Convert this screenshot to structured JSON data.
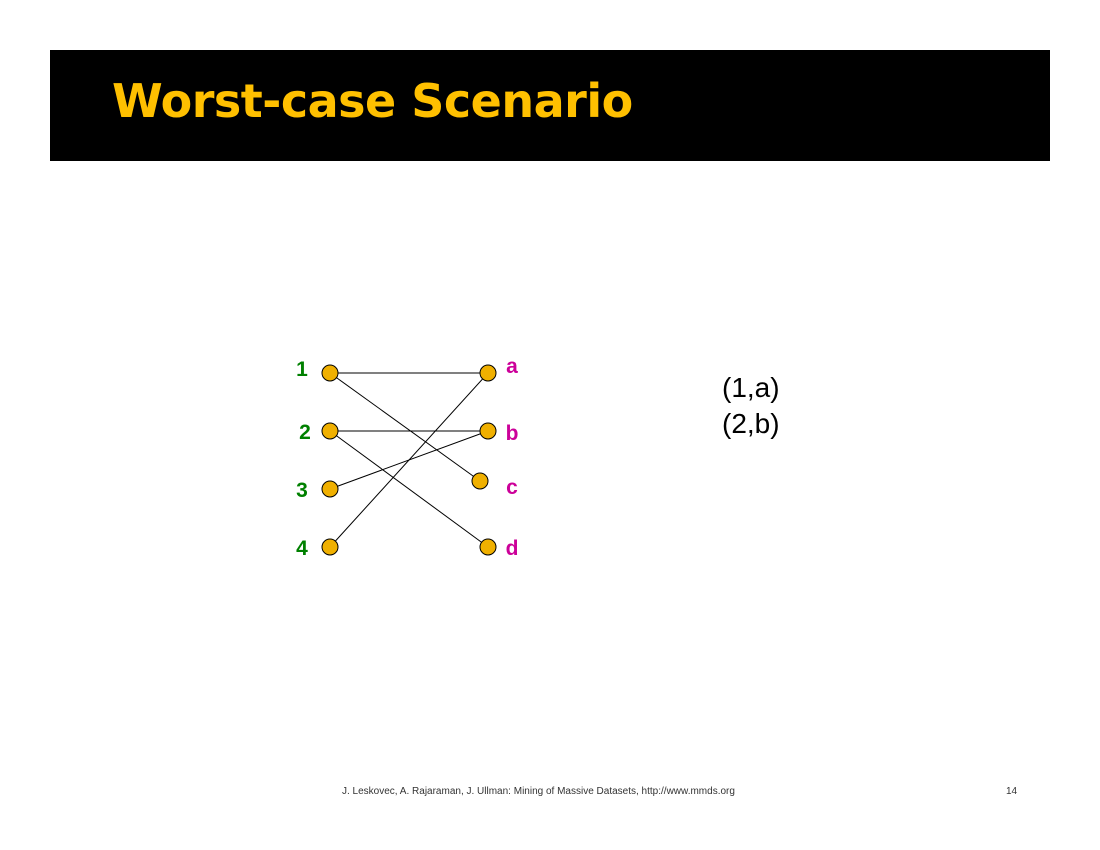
{
  "slide": {
    "title": "Worst-case Scenario",
    "footer": "J. Leskovec, A. Rajaraman, J. Ullman: Mining of Massive Datasets, http://www.mmds.org",
    "page_number": "14"
  },
  "colors": {
    "title_bar": "#000000",
    "title_text": "#ffc000",
    "left_label": "#008000",
    "right_label": "#cc0099",
    "node_fill": "#f0b000"
  },
  "graph": {
    "left_nodes": [
      "1",
      "2",
      "3",
      "4"
    ],
    "right_nodes": [
      "a",
      "b",
      "c",
      "d"
    ],
    "edges": [
      [
        "1",
        "a"
      ],
      [
        "1",
        "c"
      ],
      [
        "2",
        "b"
      ],
      [
        "2",
        "d"
      ],
      [
        "3",
        "b"
      ],
      [
        "4",
        "a"
      ]
    ]
  },
  "matching": [
    "(1,a)",
    "(2,b)"
  ]
}
